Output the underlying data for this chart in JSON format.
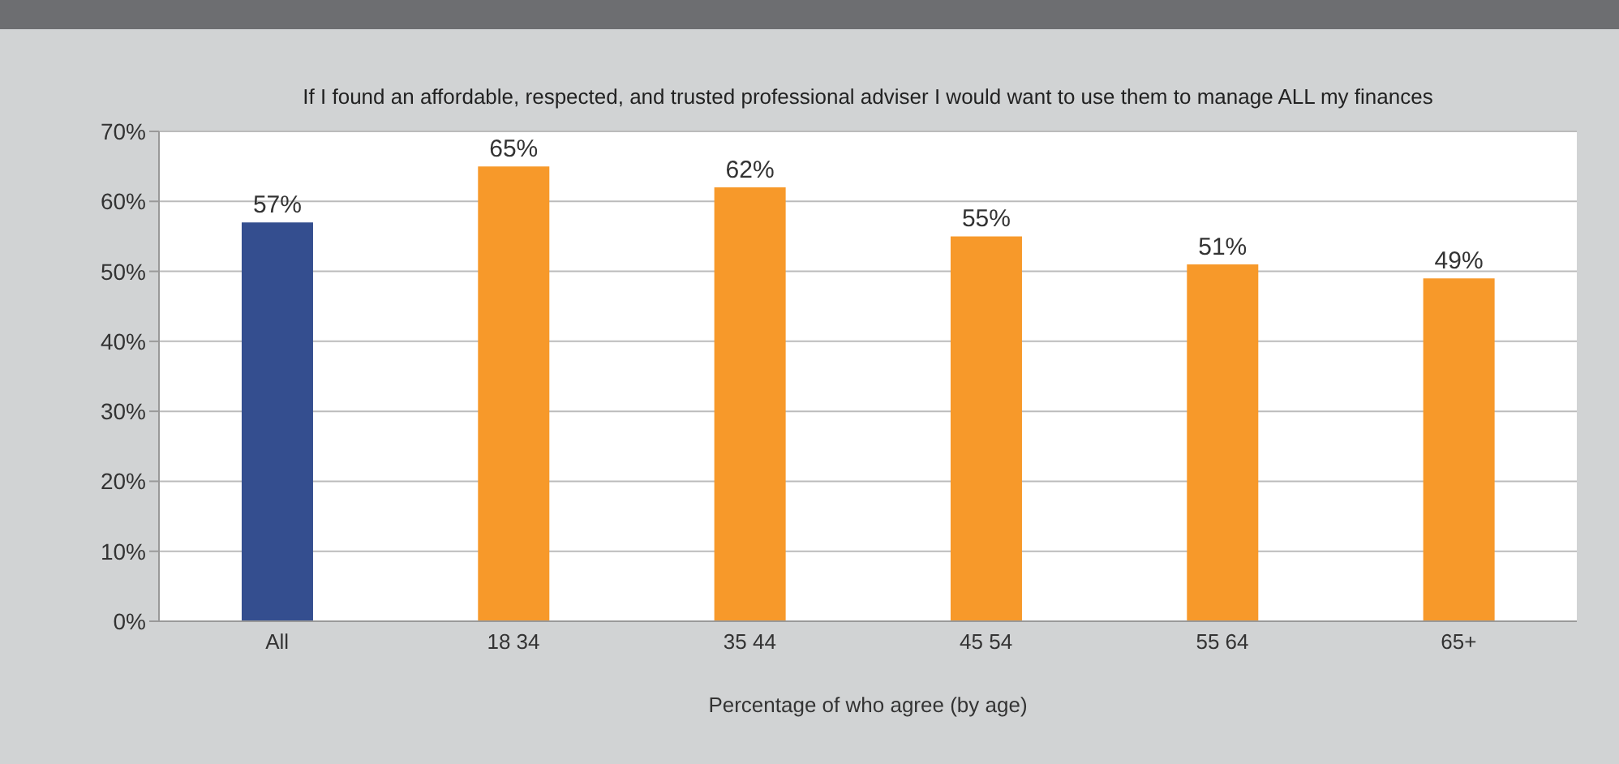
{
  "chart_data": {
    "type": "bar",
    "title": "If I found an affordable, respected, and trusted professional adviser I would want to use them to manage ALL my finances",
    "xlabel": "Percentage of who agree (by age)",
    "categories": [
      "All",
      "18 34",
      "35 44",
      "45 54",
      "55 64",
      "65+"
    ],
    "values": [
      57,
      65,
      62,
      55,
      51,
      49
    ],
    "colors": [
      "#344e8f",
      "#f7992a",
      "#f7992a",
      "#f7992a",
      "#f7992a",
      "#f7992a"
    ],
    "value_labels": [
      "57%",
      "65%",
      "62%",
      "55%",
      "51%",
      "49%"
    ],
    "ylim": [
      0,
      70
    ],
    "yticks": [
      {
        "value": 0,
        "label": "0%"
      },
      {
        "value": 10,
        "label": "10%"
      },
      {
        "value": 20,
        "label": "20%"
      },
      {
        "value": 30,
        "label": "30%"
      },
      {
        "value": 40,
        "label": "40%"
      },
      {
        "value": 50,
        "label": "50%"
      },
      {
        "value": 60,
        "label": "60%"
      },
      {
        "value": 70,
        "label": "70%"
      }
    ],
    "grid": "y"
  }
}
